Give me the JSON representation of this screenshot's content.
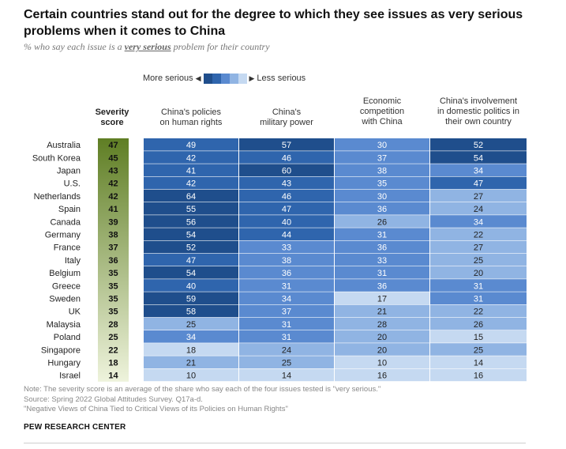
{
  "title": "Certain countries stand out for the degree to which they see issues as very serious problems when it comes to China",
  "subtitle_prefix": "% who say each issue is a ",
  "subtitle_emphasis": "very serious",
  "subtitle_suffix": " problem for their country",
  "legend": {
    "more_label": "More serious",
    "less_label": "Less serious",
    "swatches": [
      "#1f4e8c",
      "#2f65ad",
      "#5a8ad0",
      "#90b4e3",
      "#c5d9f1"
    ]
  },
  "colors": {
    "severity": "#6b8a2f",
    "bin_ge_50": "#1f4e8c",
    "bin_40_49": "#2f65ad",
    "bin_30_39": "#5a8ad0",
    "bin_20_29": "#90b4e3",
    "bin_lt_20": "#c5d9f1"
  },
  "columns": {
    "severity": "Severity\nscore",
    "human_rights": "China's policies\non human rights",
    "military": "China's\nmilitary power",
    "economic": "Economic\ncompetition\nwith China",
    "domestic": "China's involvement\nin domestic politics in\ntheir own country"
  },
  "chart_data": {
    "type": "table",
    "row_headers": [
      "Australia",
      "South Korea",
      "Japan",
      "U.S.",
      "Netherlands",
      "Spain",
      "Canada",
      "Germany",
      "France",
      "Italy",
      "Belgium",
      "Greece",
      "Sweden",
      "UK",
      "Malaysia",
      "Poland",
      "Singapore",
      "Hungary",
      "Israel"
    ],
    "severity_score": [
      47,
      45,
      43,
      42,
      42,
      41,
      39,
      38,
      37,
      36,
      35,
      35,
      35,
      35,
      28,
      25,
      22,
      18,
      14
    ],
    "human_rights": [
      49,
      42,
      41,
      42,
      64,
      55,
      56,
      54,
      52,
      47,
      54,
      40,
      59,
      58,
      25,
      34,
      18,
      21,
      10
    ],
    "military_power": [
      57,
      46,
      60,
      43,
      46,
      47,
      40,
      44,
      33,
      38,
      36,
      31,
      34,
      37,
      31,
      31,
      24,
      25,
      14
    ],
    "economic_competition": [
      30,
      37,
      38,
      35,
      30,
      36,
      26,
      31,
      36,
      33,
      31,
      36,
      17,
      21,
      28,
      20,
      20,
      10,
      16
    ],
    "domestic_politics": [
      52,
      54,
      34,
      47,
      27,
      24,
      34,
      22,
      27,
      25,
      20,
      31,
      31,
      22,
      26,
      15,
      25,
      14,
      16
    ]
  },
  "note_lines": [
    "Note: The severity score is an average of the share who say each of the four issues tested is \"very serious.\"",
    "Source: Spring 2022 Global Attitudes Survey. Q17a-d.",
    "\"Negative Views of China Tied to Critical Views of its Policies on Human Rights\""
  ],
  "brand": "PEW RESEARCH CENTER"
}
